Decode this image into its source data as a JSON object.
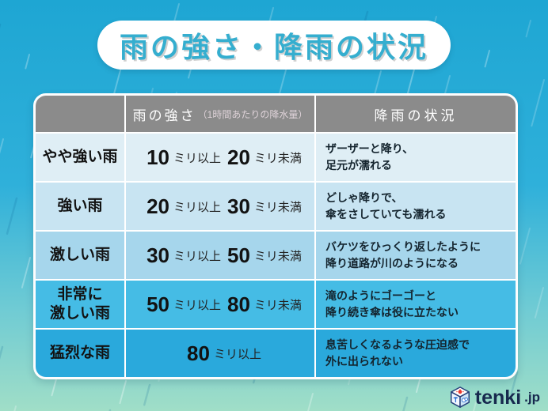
{
  "title": "雨の強さ・降雨の状況",
  "palette": {
    "bg_top": "#1ea6d3",
    "bg_bottom": "#a0dec7",
    "header_bg": "#8b8b8b",
    "title_color": "#35aecf",
    "logo_color": "#17294e",
    "row_colors": [
      "#dfeef5",
      "#c8e4f2",
      "#a6d6ec",
      "#45bce5",
      "#2aa9dc"
    ]
  },
  "table": {
    "header": {
      "col1": "",
      "col2_main": "雨の強さ",
      "col2_sub": "（1時間あたりの降水量）",
      "col3": "降雨の状況"
    },
    "rows": [
      {
        "label1": "やや強い雨",
        "label2": "",
        "num1": "10",
        "unit1": "ミリ以上",
        "num2": "20",
        "unit2": "ミリ未満",
        "desc1": "ザーザーと降り、",
        "desc2": "足元が濡れる"
      },
      {
        "label1": "強い雨",
        "label2": "",
        "num1": "20",
        "unit1": "ミリ以上",
        "num2": "30",
        "unit2": "ミリ未満",
        "desc1": "どしゃ降りで、",
        "desc2": "傘をさしていても濡れる"
      },
      {
        "label1": "激しい雨",
        "label2": "",
        "num1": "30",
        "unit1": "ミリ以上",
        "num2": "50",
        "unit2": "ミリ未満",
        "desc1": "バケツをひっくり返したように",
        "desc2": "降り道路が川のようになる"
      },
      {
        "label1": "非常に",
        "label2": "激しい雨",
        "num1": "50",
        "unit1": "ミリ以上",
        "num2": "80",
        "unit2": "ミリ未満",
        "desc1": "滝のようにゴーゴーと",
        "desc2": "降り続き傘は役に立たない"
      },
      {
        "label1": "猛烈な雨",
        "label2": "",
        "num1": "80",
        "unit1": "ミリ以上",
        "num2": "",
        "unit2": "",
        "desc1": "息苦しくなるような圧迫感で",
        "desc2": "外に出られない"
      }
    ]
  },
  "logo": {
    "text": "tenki",
    "suffix": ".jp",
    "icon": "weather-cube-icon"
  },
  "chart_data": {
    "type": "table",
    "title": "雨の強さ・降雨の状況",
    "columns": [
      "",
      "雨の強さ（1時間あたりの降水量）",
      "降雨の状況"
    ],
    "rows": [
      [
        "やや強い雨",
        "10ミリ以上20ミリ未満",
        "ザーザーと降り、足元が濡れる"
      ],
      [
        "強い雨",
        "20ミリ以上30ミリ未満",
        "どしゃ降りで、傘をさしていても濡れる"
      ],
      [
        "激しい雨",
        "30ミリ以上50ミリ未満",
        "バケツをひっくり返したように降り道路が川のようになる"
      ],
      [
        "非常に激しい雨",
        "50ミリ以上80ミリ未満",
        "滝のようにゴーゴーと降り続き傘は役に立たない"
      ],
      [
        "猛烈な雨",
        "80ミリ以上",
        "息苦しくなるような圧迫感で外に出られない"
      ]
    ],
    "source": "tenki.jp",
    "rainfall_mm_per_hour_ranges": [
      [
        10,
        20
      ],
      [
        20,
        30
      ],
      [
        30,
        50
      ],
      [
        50,
        80
      ],
      [
        80,
        null
      ]
    ]
  }
}
